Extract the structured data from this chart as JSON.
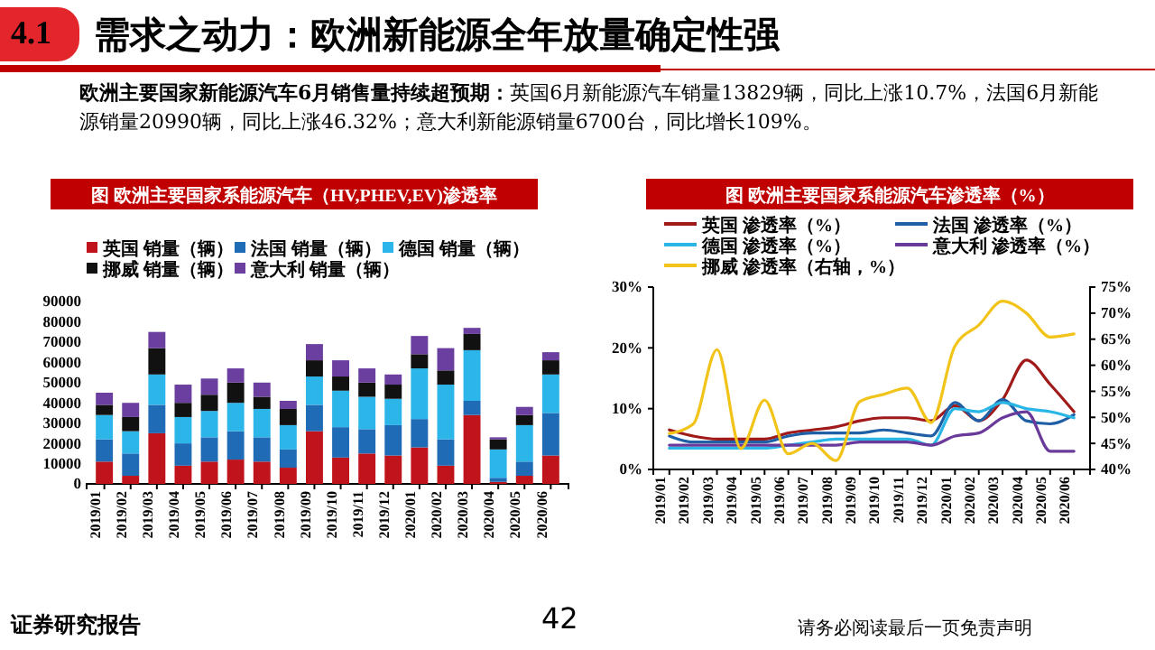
{
  "chart_data": [
    {
      "type": "other",
      "title": "需求之动力：欧洲新能源全年放量确定性强",
      "annotations": [
        "4.1",
        "欧洲主要国家新能源汽车6月销售量持续超预期：",
        "英国6月新能源汽车销量13829辆，同比上涨10.7%，法国6月新能源销量20990辆，同比上涨46.32%；意大利新能源销量6700台，同比增长109%。",
        "证券研究报告",
        "42",
        "请务必阅读最后一页免责声明"
      ]
    },
    {
      "type": "bar",
      "stacked": true,
      "title": "图  欧洲主要国家系能源汽车（HV,PHEV,EV)渗透率",
      "legend": "top",
      "categories": [
        "2019/01",
        "2019/02",
        "2019/03",
        "2019/04",
        "2019/05",
        "2019/06",
        "2019/07",
        "2019/08",
        "2019/09",
        "2019/10",
        "2019/11",
        "2019/12",
        "2020/01",
        "2020/02",
        "2020/03",
        "2020/04",
        "2020/05",
        "2020/06"
      ],
      "ylim": [
        0,
        90000
      ],
      "yticks": [
        0,
        10000,
        20000,
        30000,
        40000,
        50000,
        60000,
        70000,
        80000,
        90000
      ],
      "series": [
        {
          "name": "英国 销量（辆）",
          "color": "#c0141c",
          "values": [
            11000,
            4000,
            25000,
            9000,
            11000,
            12000,
            11000,
            8000,
            26000,
            13000,
            15000,
            14000,
            18000,
            9000,
            34000,
            1000,
            4000,
            14000
          ]
        },
        {
          "name": "法国 销量（辆）",
          "color": "#1f6bb5",
          "values": [
            11000,
            11000,
            14000,
            11000,
            12000,
            14000,
            12000,
            9000,
            13000,
            15000,
            12000,
            15000,
            14000,
            13000,
            7000,
            2000,
            7000,
            21000
          ]
        },
        {
          "name": "德国 销量（辆）",
          "color": "#2bb5e8",
          "values": [
            12000,
            11000,
            15000,
            13000,
            13000,
            14000,
            14000,
            12000,
            14000,
            18000,
            16000,
            13000,
            25000,
            27000,
            25000,
            14000,
            18000,
            19000
          ]
        },
        {
          "name": "挪威 销量（辆）",
          "color": "#111111",
          "values": [
            5000,
            7000,
            13000,
            7000,
            8000,
            10000,
            6000,
            8000,
            8000,
            7000,
            7000,
            7000,
            7000,
            7000,
            8000,
            5000,
            5000,
            7000
          ]
        },
        {
          "name": "意大利 销量（辆）",
          "color": "#6b3fa0",
          "values": [
            6000,
            7000,
            8000,
            9000,
            8000,
            7000,
            7000,
            4000,
            8000,
            8000,
            7000,
            5000,
            9000,
            11000,
            3000,
            1000,
            4000,
            4000
          ]
        }
      ]
    },
    {
      "type": "line",
      "title": "图  欧洲主要国家系能源汽车渗透率（%）",
      "legend": "top",
      "categories": [
        "2019/01",
        "2019/02",
        "2019/03",
        "2019/04",
        "2019/05",
        "2019/06",
        "2019/07",
        "2019/08",
        "2019/09",
        "2019/10",
        "2019/11",
        "2019/12",
        "2020/01",
        "2020/02",
        "2020/03",
        "2020/04",
        "2020/05",
        "2020/06"
      ],
      "ylim": [
        0,
        30
      ],
      "yticks": [
        {
          "value": 0,
          "label": "0%"
        },
        {
          "value": 10,
          "label": "10%"
        },
        {
          "value": 20,
          "label": "20%"
        },
        {
          "value": 30,
          "label": "30%"
        }
      ],
      "y2lim": [
        40,
        75
      ],
      "y2ticks": [
        {
          "value": 40,
          "label": "40%"
        },
        {
          "value": 45,
          "label": "45%"
        },
        {
          "value": 50,
          "label": "50%"
        },
        {
          "value": 55,
          "label": "55%"
        },
        {
          "value": 60,
          "label": "60%"
        },
        {
          "value": 65,
          "label": "65%"
        },
        {
          "value": 70,
          "label": "70%"
        },
        {
          "value": 75,
          "label": "75%"
        }
      ],
      "series": [
        {
          "name": "英国 渗透率（%）",
          "color": "#a01a1a",
          "values": [
            6.5,
            5.5,
            5,
            5,
            5,
            6,
            6.5,
            7,
            8,
            8.5,
            8.5,
            8,
            10.5,
            8,
            11.5,
            18,
            14,
            9.5
          ]
        },
        {
          "name": "法国 渗透率（%）",
          "color": "#1f5fa6",
          "values": [
            5.5,
            4.5,
            4.5,
            4.5,
            4.5,
            5.5,
            6,
            6,
            6,
            6.5,
            6,
            5.5,
            11,
            8,
            11.5,
            8,
            7.5,
            9
          ]
        },
        {
          "name": "德国 渗透率（%）",
          "color": "#29b6e6",
          "values": [
            3.5,
            3.5,
            3.5,
            3.5,
            3.5,
            4,
            4.5,
            5,
            5,
            5,
            5,
            4,
            10,
            9.5,
            11,
            10,
            9.5,
            8.5
          ]
        },
        {
          "name": "意大利 渗透率（%）",
          "color": "#6a3a9a",
          "values": [
            4,
            4,
            4,
            4,
            4,
            4,
            4,
            4,
            4.5,
            4.5,
            4.5,
            4,
            5.5,
            6,
            8.5,
            9.5,
            3,
            3
          ]
        },
        {
          "name": "挪威 渗透率（右轴，%）",
          "color": "#f2c318",
          "axis": "y2",
          "values": [
            46.9,
            48.7,
            63,
            44,
            53.3,
            43,
            45,
            41.7,
            53,
            54.4,
            55.6,
            49,
            63.7,
            67.7,
            72.3,
            70,
            65.4,
            66
          ]
        }
      ]
    }
  ]
}
